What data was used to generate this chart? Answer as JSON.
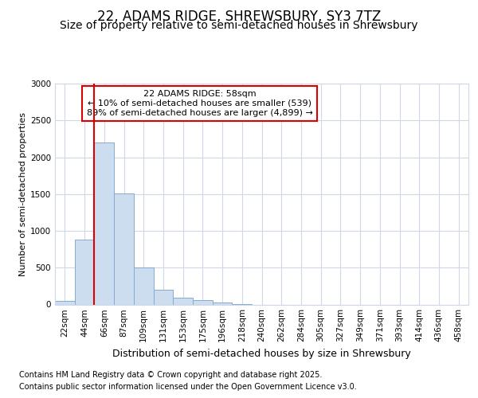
{
  "title1": "22, ADAMS RIDGE, SHREWSBURY, SY3 7TZ",
  "title2": "Size of property relative to semi-detached houses in Shrewsbury",
  "xlabel": "Distribution of semi-detached houses by size in Shrewsbury",
  "ylabel": "Number of semi-detached properties",
  "footnote1": "Contains HM Land Registry data © Crown copyright and database right 2025.",
  "footnote2": "Contains public sector information licensed under the Open Government Licence v3.0.",
  "bin_labels": [
    "22sqm",
    "44sqm",
    "66sqm",
    "87sqm",
    "109sqm",
    "131sqm",
    "153sqm",
    "175sqm",
    "196sqm",
    "218sqm",
    "240sqm",
    "262sqm",
    "284sqm",
    "305sqm",
    "327sqm",
    "349sqm",
    "371sqm",
    "393sqm",
    "414sqm",
    "436sqm",
    "458sqm"
  ],
  "bar_values": [
    50,
    880,
    2200,
    1510,
    500,
    200,
    90,
    55,
    30,
    10,
    0,
    0,
    0,
    0,
    0,
    0,
    0,
    0,
    0,
    0,
    0
  ],
  "bar_color": "#ccddf0",
  "bar_edge_color": "#88aacc",
  "grid_color": "#d0d8e8",
  "vline_x": 1.5,
  "vline_color": "#dd0000",
  "annotation_text_line1": "22 ADAMS RIDGE: 58sqm",
  "annotation_text_line2": "← 10% of semi-detached houses are smaller (539)",
  "annotation_text_line3": "89% of semi-detached houses are larger (4,899) →",
  "ylim": [
    0,
    3000
  ],
  "yticks": [
    0,
    500,
    1000,
    1500,
    2000,
    2500,
    3000
  ],
  "background_color": "#ffffff",
  "title1_fontsize": 12,
  "title2_fontsize": 10,
  "annotation_fontsize": 8,
  "ylabel_fontsize": 8,
  "xlabel_fontsize": 9,
  "footnote_fontsize": 7,
  "tick_fontsize": 7.5
}
